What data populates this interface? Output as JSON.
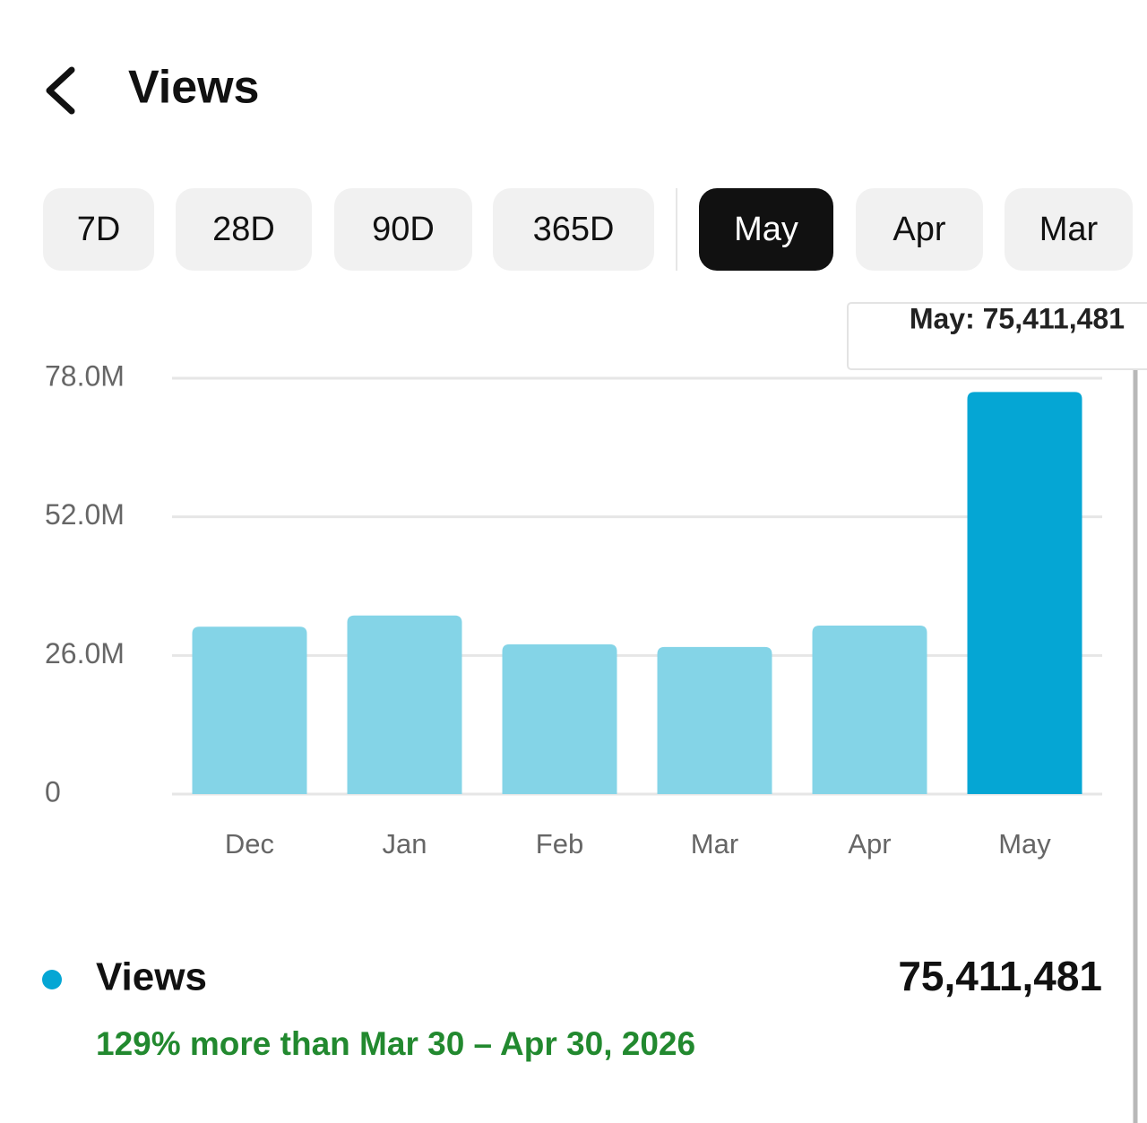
{
  "header": {
    "title": "Views"
  },
  "tabs": [
    "7D",
    "28D",
    "90D",
    "365D",
    "May",
    "Apr",
    "Mar"
  ],
  "selected_tab": 4,
  "chart_data": {
    "type": "bar",
    "categories": [
      "Dec",
      "Jan",
      "Feb",
      "Mar",
      "Apr",
      "May"
    ],
    "values": [
      31400000,
      33500000,
      28100000,
      27600000,
      31600000,
      75411481
    ],
    "colors": [
      "#84d4e7",
      "#84d4e7",
      "#84d4e7",
      "#84d4e7",
      "#84d4e7",
      "#05a6d4"
    ],
    "ylim": [
      0,
      78000000
    ],
    "yticks": [
      0,
      {
        "value": 26000000,
        "label": "26.0M"
      },
      {
        "value": 52000000,
        "label": "52.0M"
      },
      {
        "value": 78000000,
        "label": "78.0M"
      }
    ],
    "grid": true,
    "tooltip": "May: 75,411,481"
  },
  "summary": {
    "metric": "Views",
    "total": "75,411,481",
    "comparison": "129% more than Mar 30 – Apr 30, 2026"
  }
}
